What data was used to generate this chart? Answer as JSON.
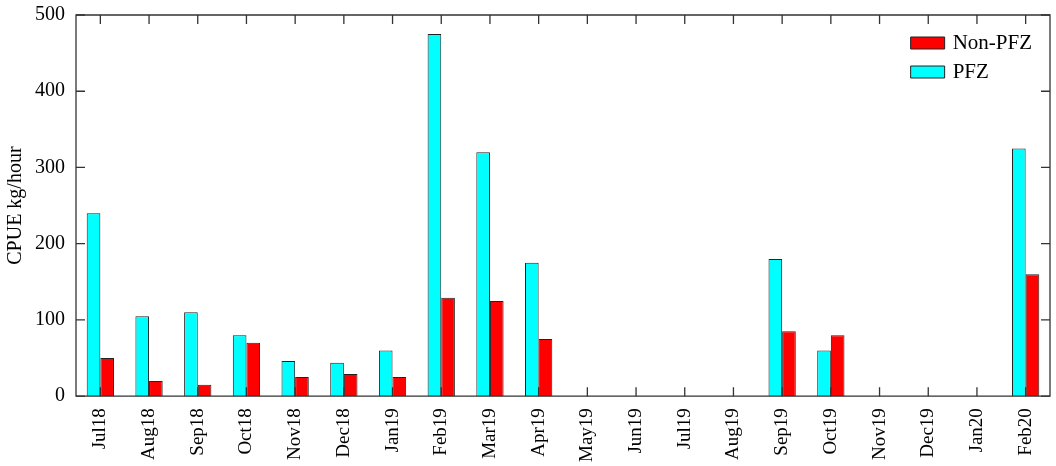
{
  "chart_data": {
    "type": "bar",
    "ylabel": "CPUE kg/hour",
    "categories": [
      "Jul18",
      "Aug18",
      "Sep18",
      "Oct18",
      "Nov18",
      "Dec18",
      "Jan19",
      "Feb19",
      "Mar19",
      "Apr19",
      "May19",
      "Jun19",
      "Jul19",
      "Aug19",
      "Sep19",
      "Oct19",
      "Nov19",
      "Dec19",
      "Jan20",
      "Feb20"
    ],
    "series": [
      {
        "name": "PFZ",
        "color": "#00ffff",
        "values": [
          240,
          105,
          110,
          80,
          46,
          44,
          60,
          475,
          320,
          175,
          null,
          null,
          null,
          null,
          180,
          60,
          null,
          null,
          null,
          325
        ]
      },
      {
        "name": "Non-PFZ",
        "color": "#ff0000",
        "values": [
          50,
          20,
          15,
          70,
          25,
          29,
          25,
          129,
          125,
          75,
          null,
          null,
          null,
          null,
          85,
          80,
          null,
          null,
          null,
          160
        ]
      }
    ],
    "ylim": [
      0,
      500
    ],
    "yticks": [
      0,
      100,
      200,
      300,
      400,
      500
    ],
    "grid": false,
    "legend": "top right"
  }
}
